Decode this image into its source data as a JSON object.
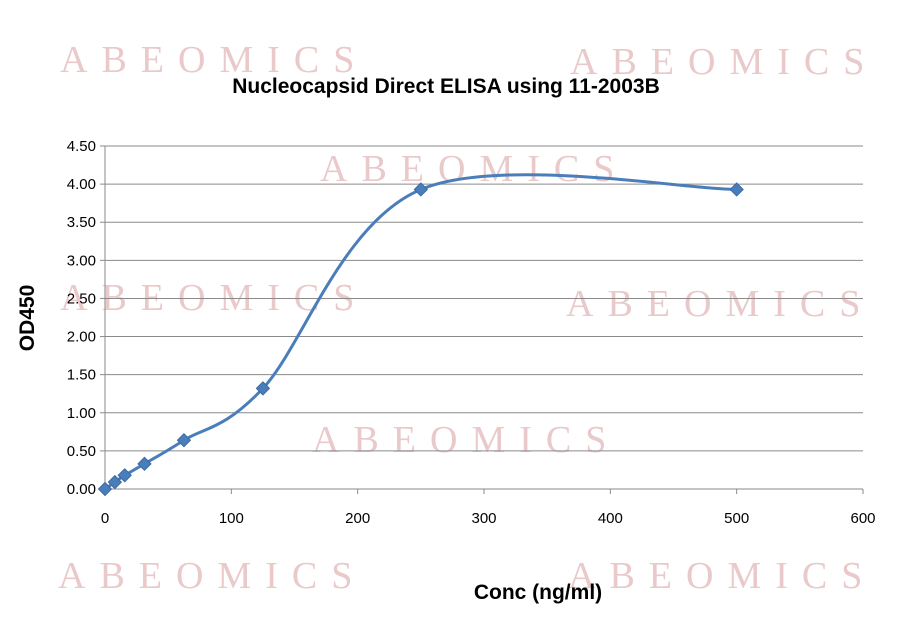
{
  "watermark": {
    "text": "ABEOMICS",
    "color": "#e9c9c9"
  },
  "chart_data": {
    "type": "line",
    "title": "Nucleocapsid Direct ELISA using 11-2003B",
    "xlabel": "Conc (ng/ml)",
    "ylabel": "OD450",
    "xlim": [
      0,
      600
    ],
    "ylim": [
      0,
      4.5
    ],
    "x_ticks": [
      "0",
      "100",
      "200",
      "300",
      "400",
      "500",
      "600"
    ],
    "y_ticks": [
      "0.00",
      "0.50",
      "1.00",
      "1.50",
      "2.00",
      "2.50",
      "3.00",
      "3.50",
      "4.00",
      "4.50"
    ],
    "grid": true,
    "smooth": true,
    "marker": "diamond",
    "series": [
      {
        "color": "#4a7ebb",
        "x": [
          0,
          7.8,
          15.6,
          31.25,
          62.5,
          125,
          250,
          500
        ],
        "y": [
          0.0,
          0.09,
          0.18,
          0.33,
          0.64,
          1.32,
          3.93,
          3.93
        ]
      }
    ]
  }
}
